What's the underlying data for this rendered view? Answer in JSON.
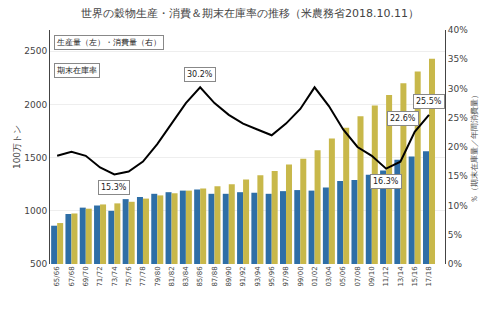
{
  "chart_data": {
    "type": "bar",
    "title": "世界の穀物生産・消費＆期末在庫率の推移（米農務省2018.10.11）",
    "ylabel": "100万トン",
    "y2label": "％（期末在庫量／年間消費量）",
    "categories": [
      "65/66",
      "67/68",
      "69/70",
      "71/72",
      "73/74",
      "75/76",
      "77/78",
      "79/80",
      "81/82",
      "83/84",
      "85/86",
      "87/88",
      "89/90",
      "91/92",
      "93/94",
      "95/96",
      "97/98",
      "99/00",
      "01/02",
      "03/04",
      "05/06",
      "07/08",
      "09/10",
      "11/12",
      "13/14",
      "15/16",
      "17/18"
    ],
    "series": [
      {
        "type": "bar",
        "color": "#2E6EA6",
        "values": [
          860,
          970,
          1030,
          1050,
          1000,
          1110,
          1130,
          1160,
          1175,
          1190,
          1200,
          1160,
          1160,
          1175,
          1170,
          1160,
          1185,
          1195,
          1190,
          1220,
          1280,
          1290,
          1340,
          1380,
          1480,
          1510,
          1560
        ]
      },
      {
        "type": "bar",
        "color": "#C8B84A",
        "values": [
          885,
          975,
          1020,
          1060,
          1070,
          1085,
          1115,
          1145,
          1165,
          1190,
          1210,
          1230,
          1250,
          1295,
          1335,
          1375,
          1435,
          1490,
          1570,
          1680,
          1780,
          1890,
          1990,
          2090,
          2200,
          2310,
          2430
        ]
      },
      {
        "type": "line",
        "color": "#000000",
        "axis": "y2",
        "values": [
          18.5,
          19.2,
          18.5,
          16.5,
          15.3,
          15.8,
          17.5,
          20.5,
          24.0,
          27.5,
          30.2,
          27.5,
          25.5,
          24.0,
          23.0,
          22.0,
          24.0,
          26.5,
          30.2,
          27.0,
          23.0,
          20.0,
          18.5,
          16.3,
          17.5,
          22.6,
          25.5
        ]
      }
    ],
    "ylim": [
      500,
      2700
    ],
    "yticks": [
      500,
      1000,
      1500,
      2000,
      2500
    ],
    "y2lim": [
      0,
      40
    ],
    "y2ticks": [
      {
        "value": 0,
        "label": "0%"
      },
      {
        "value": 5,
        "label": "5%"
      },
      {
        "value": 10,
        "label": "10%"
      },
      {
        "value": 15,
        "label": "15%"
      },
      {
        "value": 20,
        "label": "20%"
      },
      {
        "value": 25,
        "label": "25%"
      },
      {
        "value": 30,
        "label": "30%"
      },
      {
        "value": 35,
        "label": "35%"
      },
      {
        "value": 40,
        "label": "40%"
      }
    ],
    "grid": true,
    "annotations": [
      {
        "text": "15.3%",
        "x": "73/74",
        "y": 15.3,
        "axis": "y2"
      },
      {
        "text": "30.2%",
        "x": "85/86",
        "y": 30.2,
        "axis": "y2"
      },
      {
        "text": "16.3%",
        "x": "11/12",
        "y": 16.3,
        "axis": "y2"
      },
      {
        "text": "22.6%",
        "x": "15/16",
        "y": 22.6,
        "axis": "y2"
      },
      {
        "text": "25.5%",
        "x": "17/18",
        "y": 25.5,
        "axis": "y2"
      },
      {
        "text": "生産量（左）・消費量（右）"
      },
      {
        "text": "期末在庫率"
      }
    ]
  }
}
